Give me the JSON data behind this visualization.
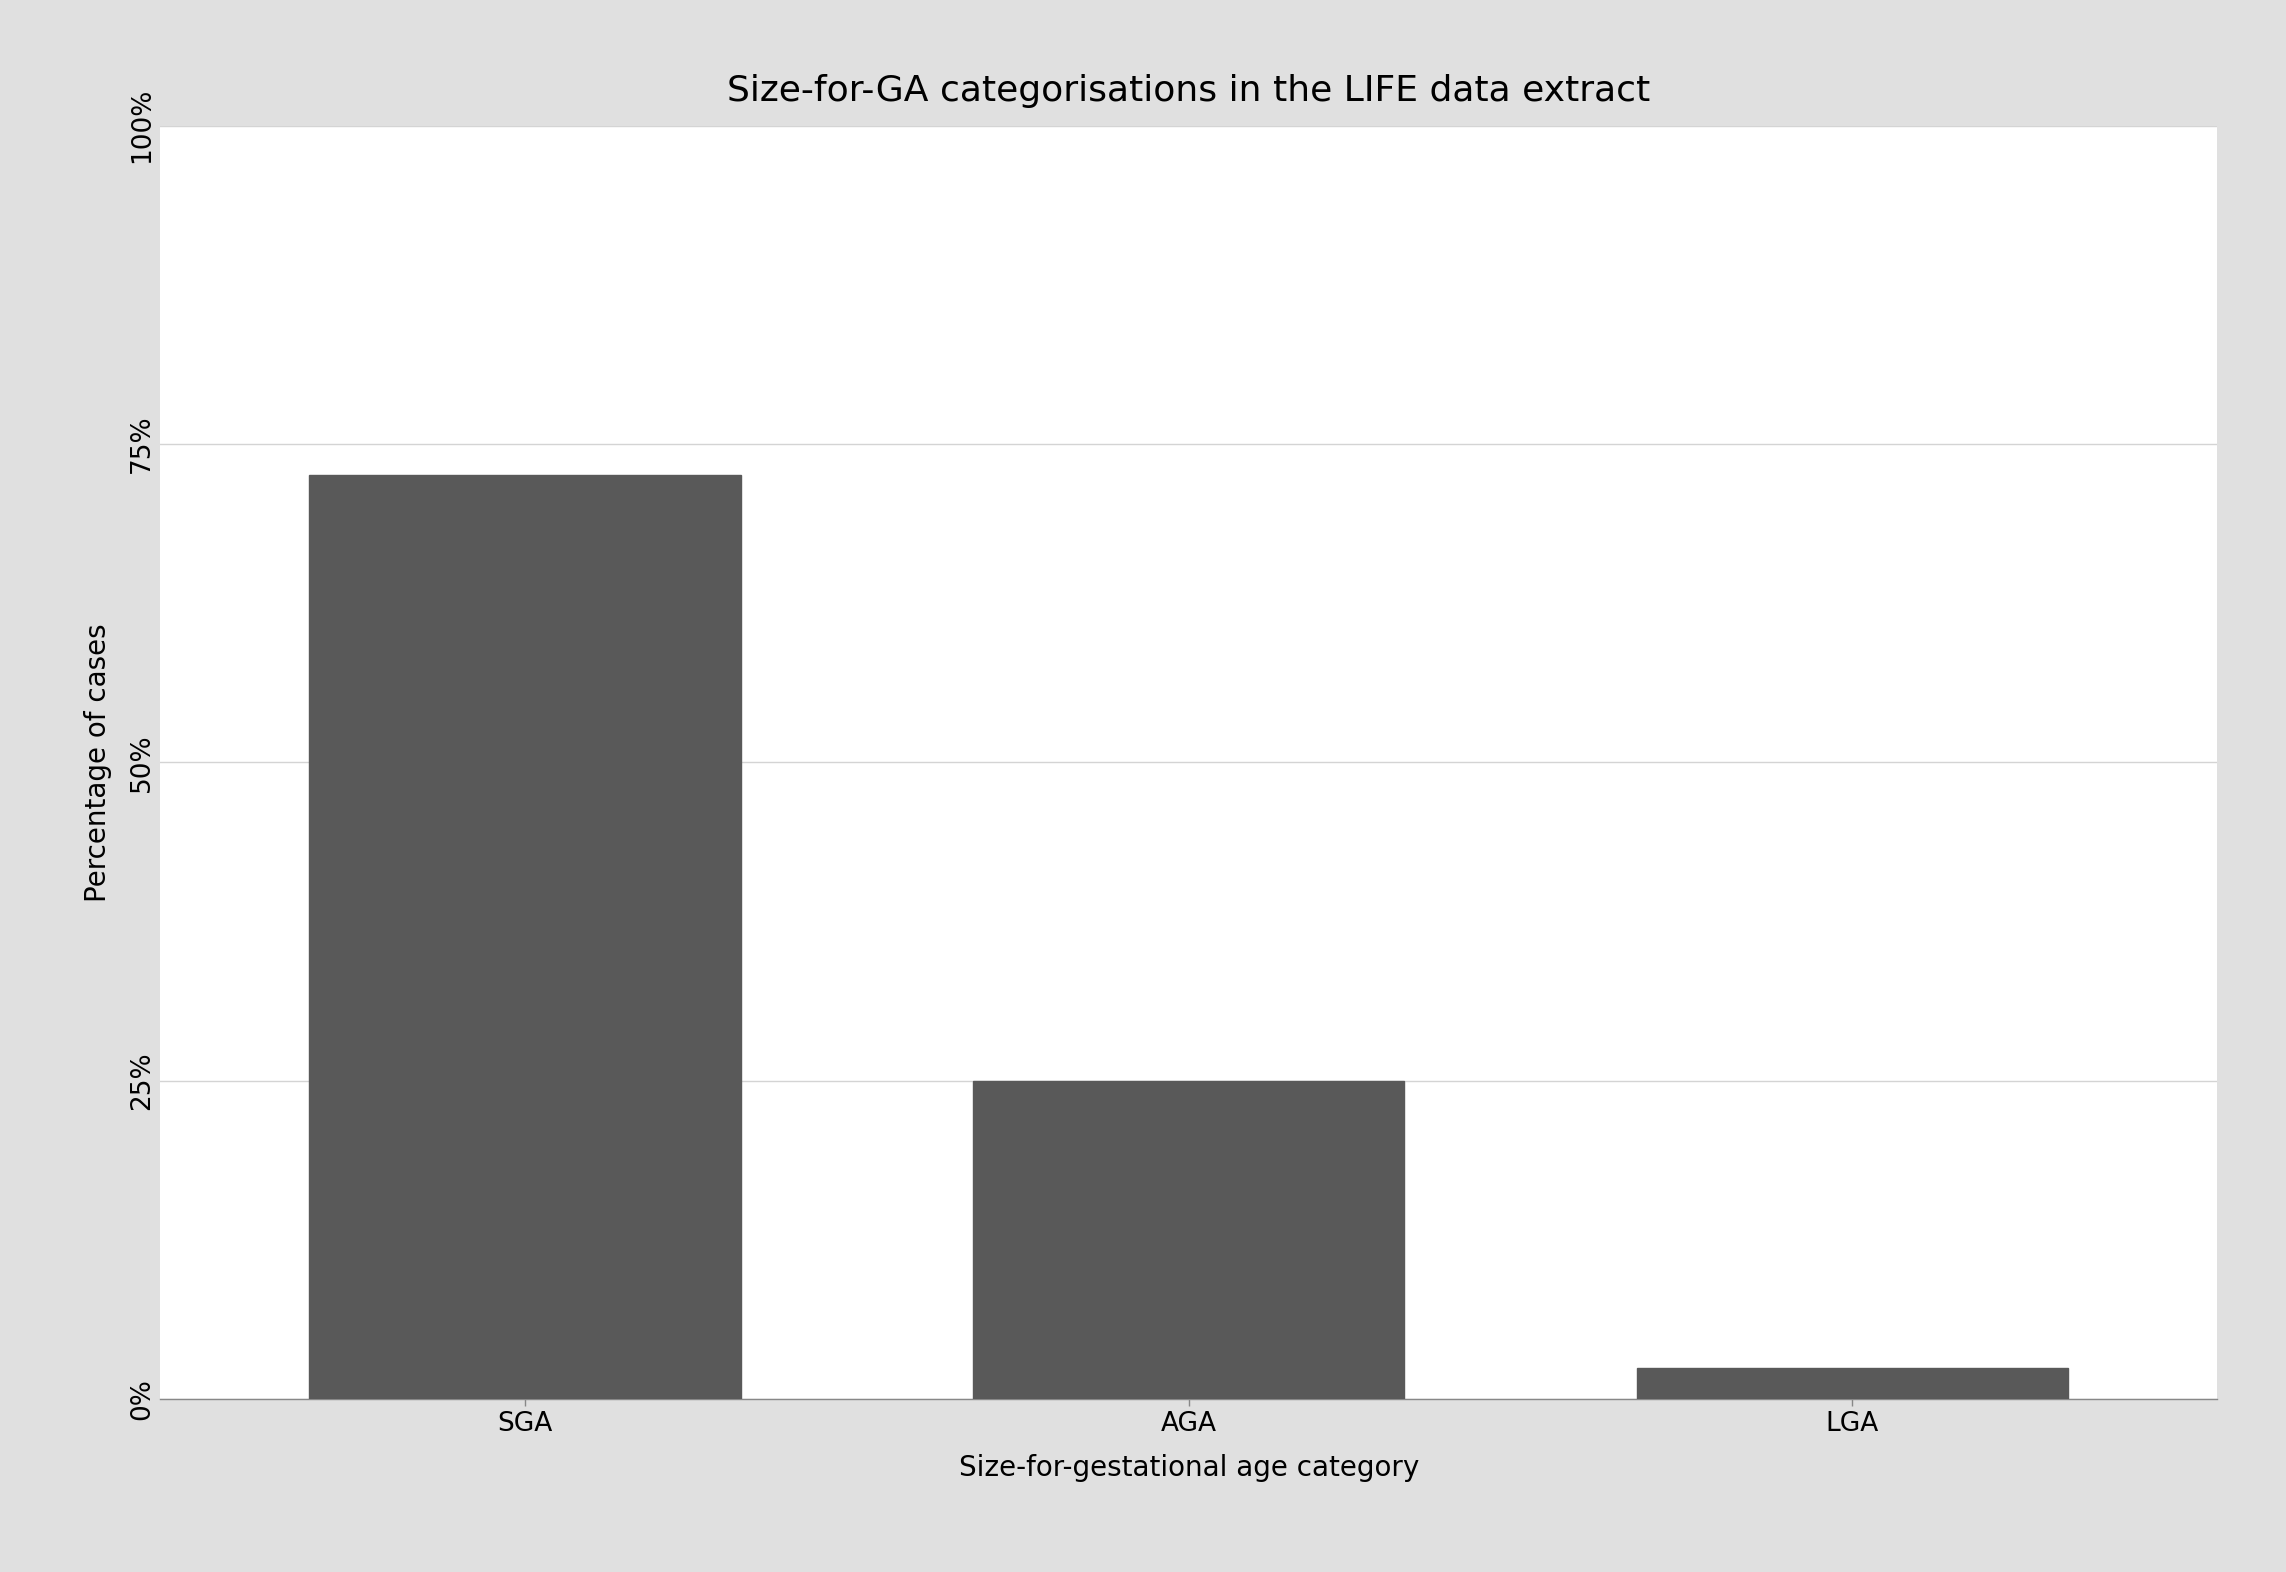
{
  "title": "Size-for-GA categorisations in the LIFE data extract",
  "xlabel": "Size-for-gestational age category",
  "ylabel": "Percentage of cases",
  "categories": [
    "SGA",
    "AGA",
    "LGA"
  ],
  "values": [
    72.56,
    25.0,
    2.44
  ],
  "bar_color": "#595959",
  "background_color": "#e0e0e0",
  "plot_background_color": "#ffffff",
  "ylim": [
    0,
    100
  ],
  "yticks": [
    0,
    25,
    50,
    75,
    100
  ],
  "ytick_labels": [
    "0%",
    "25%",
    "50%",
    "75%",
    "100%"
  ],
  "title_fontsize": 26,
  "label_fontsize": 20,
  "tick_fontsize": 19,
  "bar_width": 0.65,
  "grid_color": "#d4d4d4",
  "spine_color": "#888888"
}
